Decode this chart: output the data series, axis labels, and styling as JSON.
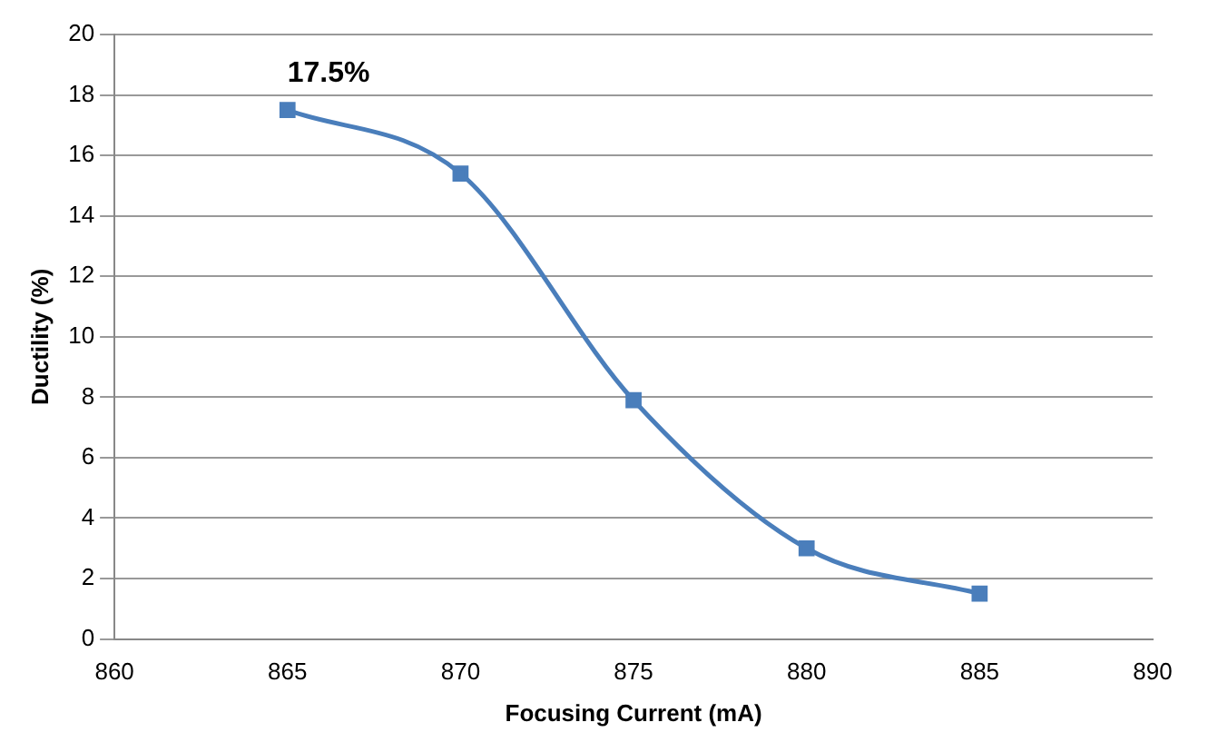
{
  "chart_data": {
    "type": "line",
    "xlabel": "Focusing Current (mA)",
    "ylabel": "Ductility (%)",
    "x": [
      865,
      870,
      875,
      880,
      885
    ],
    "series": [
      {
        "color": "#4a7ebb",
        "values": [
          17.5,
          15.4,
          7.9,
          3.0,
          1.5
        ],
        "value_labels": [
          "17.5%",
          null,
          null,
          null,
          null
        ]
      }
    ],
    "xlim": [
      860,
      890
    ],
    "xticks": [
      860,
      865,
      870,
      875,
      880,
      885,
      890
    ],
    "ylim": [
      0,
      20
    ],
    "yticks": [
      0,
      2,
      4,
      6,
      8,
      10,
      12,
      14,
      16,
      18,
      20
    ],
    "grid": "y",
    "legend": false,
    "marker": "square",
    "line_style": "solid"
  }
}
